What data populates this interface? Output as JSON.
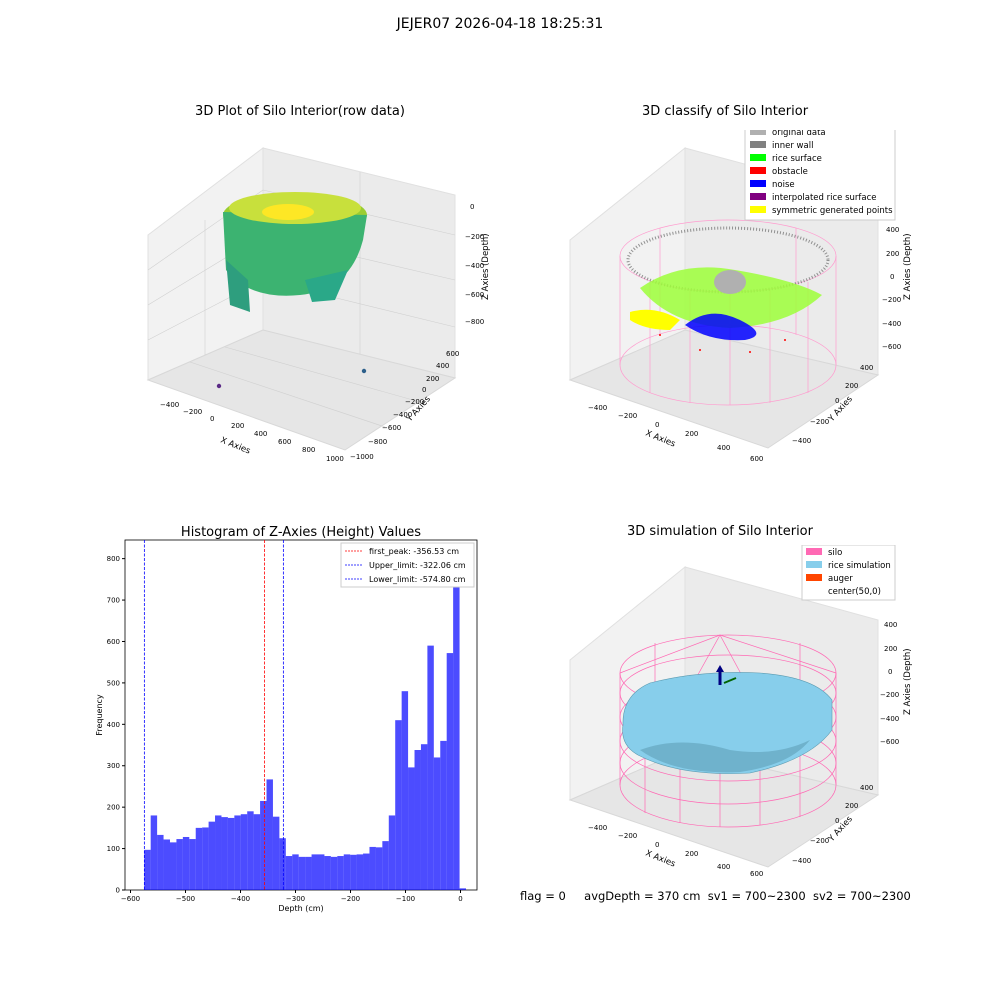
{
  "suptitle": "JEJER07 2026-04-18 18:25:31",
  "panels": {
    "raw": {
      "title": "3D Plot of Silo Interior(row data)",
      "xlabel": "X Axies",
      "ylabel": "Y Axies",
      "zlabel": "Z Axies (Depth)",
      "xticks": [
        "−400",
        "−200",
        "0",
        "200",
        "400",
        "600",
        "800",
        "1000"
      ],
      "yticks": [
        "−1000",
        "−800",
        "−600",
        "−400",
        "−200",
        "0",
        "200",
        "400",
        "600"
      ],
      "zticks": [
        "0",
        "−200",
        "−400",
        "−600",
        "−800"
      ]
    },
    "classify": {
      "title": "3D classify of Silo Interior",
      "xlabel": "X Axies",
      "ylabel": "Y Axies",
      "zlabel": "Z Axies (Depth)",
      "xticks": [
        "−400",
        "−200",
        "0",
        "200",
        "400",
        "600"
      ],
      "yticks": [
        "−400",
        "−200",
        "0",
        "200",
        "400"
      ],
      "zticks": [
        "400",
        "200",
        "0",
        "−200",
        "−400",
        "−600"
      ],
      "legend": [
        {
          "label": "original data",
          "color": "#b0b0b0"
        },
        {
          "label": "inner wall",
          "color": "#808080"
        },
        {
          "label": "rice surface",
          "color": "#00ff00"
        },
        {
          "label": "obstacle",
          "color": "#ff0000"
        },
        {
          "label": "noise",
          "color": "#0000ff"
        },
        {
          "label": "interpolated rice surface",
          "color": "#800080"
        },
        {
          "label": "symmetric generated points",
          "color": "#ffff00"
        }
      ]
    },
    "simulation": {
      "title": "3D simulation of Silo Interior",
      "xlabel": "X Axies",
      "ylabel": "Y Axies",
      "zlabel": "Z Axies (Depth)",
      "xticks": [
        "−400",
        "−200",
        "0",
        "200",
        "400",
        "600"
      ],
      "yticks": [
        "−400",
        "−200",
        "0",
        "200",
        "400"
      ],
      "zticks": [
        "400",
        "200",
        "0",
        "−200",
        "−400",
        "−600"
      ],
      "legend": [
        {
          "label": "silo",
          "color": "#ff69b4"
        },
        {
          "label": "rice simulation",
          "color": "#87ceeb"
        },
        {
          "label": "auger",
          "color": "#ff4500"
        },
        {
          "label": "center(50,0)",
          "color": "#ffffff"
        }
      ]
    }
  },
  "status": {
    "flag": "flag = 0",
    "avg_depth": "avgDepth = 370 cm",
    "sv1": "sv1 = 700~2300",
    "sv2": "sv2 = 700~2300"
  },
  "chart_data": [
    {
      "type": "histogram",
      "title": "Histogram of Z-Axies (Height) Values",
      "xlabel": "Depth (cm)",
      "ylabel": "Frequency",
      "xlim": [
        -610,
        30
      ],
      "ylim": [
        0,
        845
      ],
      "xticks": [
        -600,
        -500,
        -400,
        -300,
        -200,
        -100,
        0
      ],
      "xtick_labels": [
        "−600",
        "−500",
        "−400",
        "−300",
        "−200",
        "−100",
        "0"
      ],
      "yticks": [
        0,
        100,
        200,
        300,
        400,
        500,
        600,
        700,
        800
      ],
      "bar_color": "#0000ff",
      "bin_edges_start": -575,
      "bin_width": 11.7,
      "values": [
        97,
        180,
        133,
        122,
        115,
        123,
        128,
        123,
        150,
        151,
        165,
        180,
        176,
        174,
        180,
        183,
        190,
        183,
        215,
        267,
        177,
        125,
        82,
        86,
        80,
        80,
        86,
        86,
        82,
        80,
        82,
        86,
        85,
        86,
        88,
        104,
        103,
        118,
        180,
        410,
        480,
        296,
        338,
        352,
        590,
        320,
        360,
        572,
        800,
        4
      ],
      "lines": [
        {
          "label": "first_peak: -356.53 cm",
          "x": -356.53,
          "color": "#ff0000"
        },
        {
          "label": "Upper_limit: -322.06 cm",
          "x": -322.06,
          "color": "#0000ff"
        },
        {
          "label": "Lower_limit: -574.80 cm",
          "x": -574.8,
          "color": "#0000ff"
        }
      ],
      "legend_loc": "upper right"
    }
  ]
}
